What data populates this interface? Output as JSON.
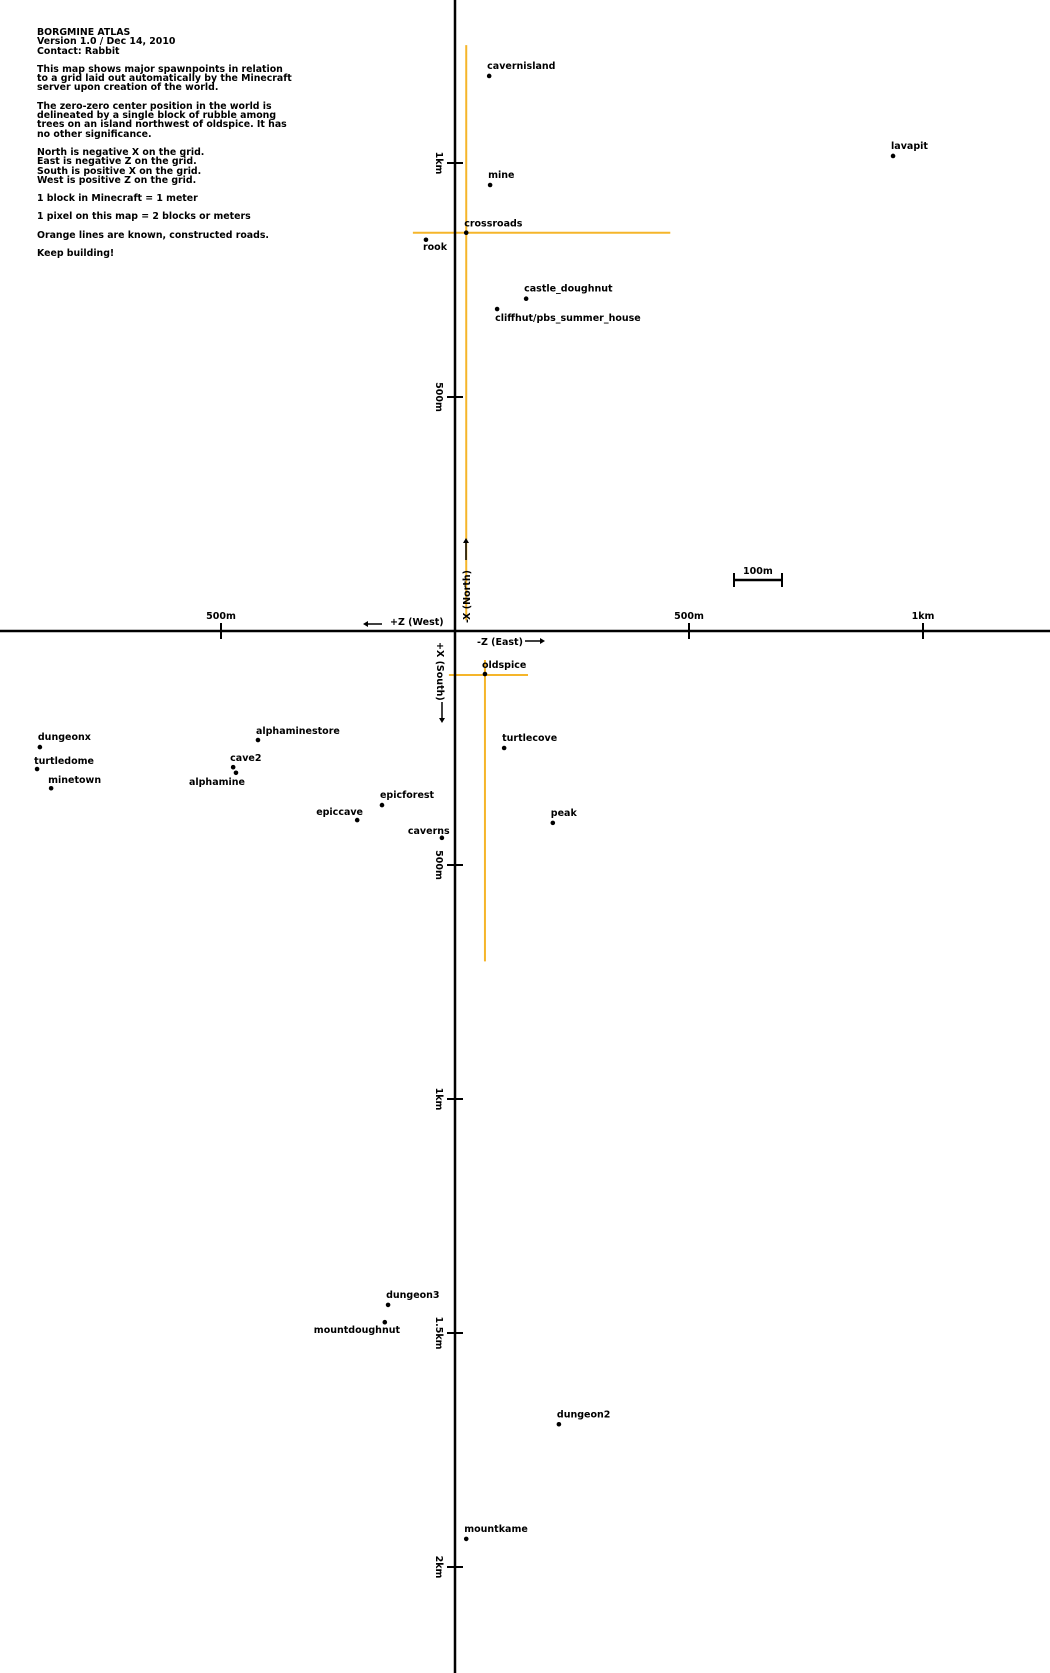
{
  "legend": {
    "title": "BORGMINE ATLAS",
    "version": "Version 1.0 / Dec 14, 2010",
    "contact": "Contact: Rabbit",
    "paragraphs": [
      "This map shows major spawnpoints in relation to a grid laid out automatically by the Minecraft server upon creation of the world.",
      "The zero-zero center position in the world is delineated by a single block of rubble among trees on an island northwest of oldspice. It has no other significance.",
      "North is negative X on the grid.\nEast is negative Z on the grid.\nSouth is positive X on the grid.\nWest is positive Z on the grid.",
      "1 block in Minecraft = 1 meter",
      "1 pixel on this map = 2 blocks or meters",
      "Orange lines are known, constructed roads.",
      "Keep building!"
    ]
  },
  "axes": {
    "north_label": "-X (North)",
    "south_label": "+X (South)",
    "east_label": "-Z (East)",
    "west_label": "+Z (West)",
    "horizontal_ticks": [
      {
        "z": 500,
        "label": "500m"
      },
      {
        "z": -500,
        "label": "500m"
      },
      {
        "z": -1000,
        "label": "1km"
      }
    ],
    "vertical_ticks": [
      {
        "x": -1000,
        "label": "1km"
      },
      {
        "x": -500,
        "label": "500m"
      },
      {
        "x": 500,
        "label": "500m"
      },
      {
        "x": 1000,
        "label": "1km"
      },
      {
        "x": 1500,
        "label": "1.5km"
      },
      {
        "x": 2000,
        "label": "2km"
      }
    ],
    "axis_color": "#000000"
  },
  "scale_bar": {
    "label": "100m",
    "length_m": 100
  },
  "road_color": "#f5b52a",
  "roads": [
    {
      "from": {
        "x": -1252,
        "z": -24
      },
      "to": {
        "x": -23,
        "z": -24
      }
    },
    {
      "from": {
        "x": -851,
        "z": 90
      },
      "to": {
        "x": -851,
        "z": -460
      }
    },
    {
      "from": {
        "x": 94,
        "z": 13
      },
      "to": {
        "x": 94,
        "z": -156
      }
    },
    {
      "from": {
        "x": 62,
        "z": -64
      },
      "to": {
        "x": 706,
        "z": -64
      }
    }
  ],
  "places": [
    {
      "name": "cavernisland",
      "x": -1186,
      "z": -73
    },
    {
      "name": "lavapit",
      "x": -1015,
      "z": -936
    },
    {
      "name": "mine",
      "x": -953,
      "z": -75
    },
    {
      "name": "crossroads",
      "x": -851,
      "z": -24
    },
    {
      "name": "rook",
      "x": -836,
      "z": 62
    },
    {
      "name": "castle_doughnut",
      "x": -710,
      "z": -152
    },
    {
      "name": "cliffhut/pbs_summer_house",
      "x": -688,
      "z": -90
    },
    {
      "name": "oldspice",
      "x": 92,
      "z": -64
    },
    {
      "name": "turtlecove",
      "x": 250,
      "z": -105
    },
    {
      "name": "peak",
      "x": 410,
      "z": -209
    },
    {
      "name": "caverns",
      "x": 442,
      "z": 28
    },
    {
      "name": "epicforest",
      "x": 372,
      "z": 156
    },
    {
      "name": "epiccave",
      "x": 404,
      "z": 209
    },
    {
      "name": "alphaminestore",
      "x": 233,
      "z": 421
    },
    {
      "name": "cave2",
      "x": 291,
      "z": 474
    },
    {
      "name": "alphamine",
      "x": 303,
      "z": 468
    },
    {
      "name": "dungeonx",
      "x": 248,
      "z": 887
    },
    {
      "name": "turtledome",
      "x": 295,
      "z": 893
    },
    {
      "name": "minetown",
      "x": 336,
      "z": 863
    },
    {
      "name": "dungeon3",
      "x": 1440,
      "z": 143
    },
    {
      "name": "mountdoughnut",
      "x": 1477,
      "z": 150
    },
    {
      "name": "dungeon2",
      "x": 1695,
      "z": -222
    },
    {
      "name": "mountkame",
      "x": 1940,
      "z": -24
    }
  ]
}
